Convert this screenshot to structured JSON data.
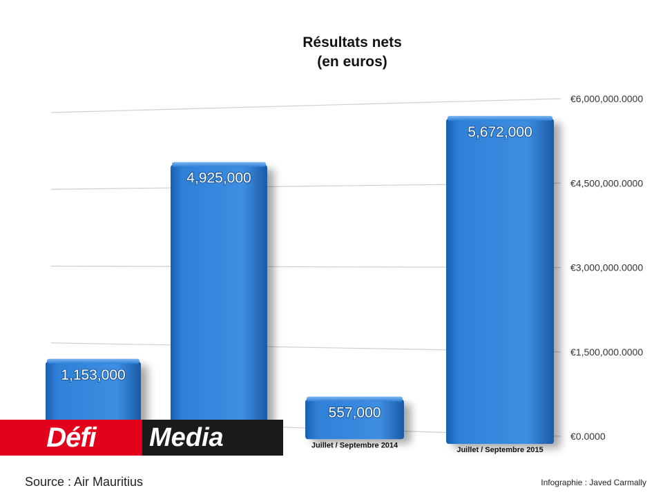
{
  "chart_data": {
    "type": "bar",
    "title": [
      "Résultats nets",
      "(en euros)"
    ],
    "categories": [
      "",
      "",
      "Juillet / Septembre 2014",
      "Juillet / Septembre 2015"
    ],
    "values": [
      1153000,
      4925000,
      557000,
      5672000
    ],
    "value_labels": [
      "1,153,000",
      "4,925,000",
      "557,000",
      "5,672,000"
    ],
    "y_ticks": [
      0,
      1500000,
      3000000,
      4500000,
      6000000
    ],
    "y_tick_labels": [
      "€0.0000",
      "€1,500,000.0000",
      "€3,000,000.0000",
      "€4,500,000.0000",
      "€6,000,000.0000"
    ],
    "ylim": [
      0,
      6000000
    ],
    "y_axis_position": "right",
    "grid": true,
    "bar_color": "#2f80d8"
  },
  "logo": {
    "part1": "Défi",
    "part2": "Media",
    "colors": {
      "red": "#e3001b",
      "dark": "#1b1b1b"
    }
  },
  "footer": {
    "source": "Source : Air Mauritius",
    "credit": "Infographie : Javed Carmally"
  }
}
